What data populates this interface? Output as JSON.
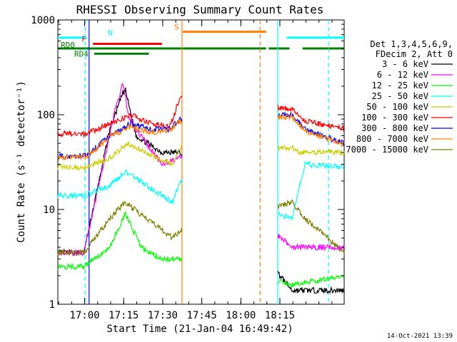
{
  "chart_data": {
    "type": "line",
    "title": "RHESSI Observing Summary Count Rates",
    "xlabel": "Start Time (21-Jan-04 16:49:42)",
    "ylabel": "Count Rate (s⁻¹ detector⁻¹)",
    "yscale": "log",
    "ylim": [
      1,
      1000
    ],
    "xlim_min": [
      0,
      110
    ],
    "x_ticks": [
      {
        "t": 10.3,
        "label": "17:00"
      },
      {
        "t": 25.3,
        "label": "17:15"
      },
      {
        "t": 40.3,
        "label": "17:30"
      },
      {
        "t": 55.3,
        "label": "17:45"
      },
      {
        "t": 70.3,
        "label": "18:00"
      },
      {
        "t": 85.3,
        "label": "18:15"
      }
    ],
    "y_ticks": [
      {
        "v": 1,
        "label": "1"
      },
      {
        "v": 10,
        "label": "10"
      },
      {
        "v": 100,
        "label": "100"
      },
      {
        "v": 1000,
        "label": "1000"
      }
    ],
    "legend_header": [
      "Det 1,3,4,5,6,9,",
      "FDecim 2, Att 0"
    ],
    "legend_position": "right",
    "series": [
      {
        "name": "3 - 6 keV",
        "color": "#000000",
        "values": [
          [
            0,
            3.5
          ],
          [
            10,
            3.5
          ],
          [
            20,
            70
          ],
          [
            25,
            170
          ],
          [
            26,
            180
          ],
          [
            30,
            60
          ],
          [
            40,
            40
          ],
          [
            47,
            40
          ],
          [
            90,
            1.4
          ],
          [
            110,
            1.4
          ]
        ]
      },
      {
        "name": "6 - 12 keV",
        "color": "#ff00ff",
        "values": [
          [
            0,
            3.5
          ],
          [
            10,
            3.5
          ],
          [
            22,
            110
          ],
          [
            25,
            220
          ],
          [
            27,
            100
          ],
          [
            30,
            70
          ],
          [
            40,
            30
          ],
          [
            47,
            35
          ],
          [
            90,
            4
          ],
          [
            95,
            4
          ],
          [
            110,
            4
          ]
        ]
      },
      {
        "name": "12 - 25 keV",
        "color": "#00ff00",
        "values": [
          [
            0,
            2.5
          ],
          [
            10,
            2.5
          ],
          [
            20,
            4
          ],
          [
            26,
            9
          ],
          [
            32,
            4
          ],
          [
            40,
            3
          ],
          [
            47,
            3
          ],
          [
            90,
            1.6
          ],
          [
            110,
            2
          ]
        ]
      },
      {
        "name": "25 - 50 keV",
        "color": "#00ffff",
        "values": [
          [
            0,
            14
          ],
          [
            10,
            14
          ],
          [
            20,
            18
          ],
          [
            26,
            25
          ],
          [
            34,
            18
          ],
          [
            44,
            12
          ],
          [
            47,
            20
          ],
          [
            90,
            8
          ],
          [
            95,
            30
          ],
          [
            110,
            28
          ]
        ]
      },
      {
        "name": "50 - 100 keV",
        "color": "#cccc00",
        "values": [
          [
            0,
            28
          ],
          [
            10,
            28
          ],
          [
            20,
            35
          ],
          [
            27,
            50
          ],
          [
            34,
            40
          ],
          [
            44,
            30
          ],
          [
            47,
            45
          ],
          [
            90,
            45
          ],
          [
            93,
            40
          ],
          [
            110,
            40
          ]
        ]
      },
      {
        "name": "100 - 300 keV",
        "color": "#ff0000",
        "values": [
          [
            0,
            63
          ],
          [
            11,
            63
          ],
          [
            20,
            80
          ],
          [
            28,
            100
          ],
          [
            36,
            80
          ],
          [
            43,
            75
          ],
          [
            47,
            150
          ],
          [
            90,
            115
          ],
          [
            95,
            85
          ],
          [
            110,
            72
          ]
        ]
      },
      {
        "name": "300 - 800 keV",
        "color": "#0000ff",
        "values": [
          [
            0,
            36
          ],
          [
            11,
            37
          ],
          [
            20,
            60
          ],
          [
            28,
            80
          ],
          [
            36,
            70
          ],
          [
            43,
            70
          ],
          [
            47,
            90
          ],
          [
            90,
            100
          ],
          [
            95,
            70
          ],
          [
            110,
            50
          ]
        ]
      },
      {
        "name": "800 - 7000 keV",
        "color": "#ff8000",
        "values": [
          [
            0,
            35
          ],
          [
            11,
            36
          ],
          [
            20,
            58
          ],
          [
            28,
            75
          ],
          [
            36,
            65
          ],
          [
            43,
            68
          ],
          [
            47,
            85
          ],
          [
            90,
            95
          ],
          [
            95,
            68
          ],
          [
            110,
            48
          ]
        ]
      },
      {
        "name": "7000 - 15000 keV",
        "color": "#808000",
        "values": [
          [
            0,
            3.5
          ],
          [
            10,
            3.5
          ],
          [
            20,
            8
          ],
          [
            26,
            12
          ],
          [
            34,
            8
          ],
          [
            44,
            5
          ],
          [
            47,
            6
          ],
          [
            90,
            12
          ],
          [
            95,
            8
          ],
          [
            110,
            3.5
          ]
        ]
      }
    ],
    "state_bars": [
      {
        "label": "N",
        "color": "#00ffff",
        "segments": [
          [
            0,
            11
          ],
          [
            88,
            110
          ]
        ],
        "level": 650
      },
      {
        "label": "F",
        "color": "#ff0000",
        "segments": [
          [
            13.5,
            40
          ]
        ],
        "level": 560
      },
      {
        "label": "S",
        "color": "#ff8000",
        "segments": [
          [
            48,
            80
          ]
        ],
        "level": 750
      },
      {
        "label": "RD0",
        "color": "#008000",
        "segments": [
          [
            0,
            80
          ],
          [
            81,
            89
          ],
          [
            94,
            110
          ]
        ],
        "level": 500
      },
      {
        "label": "RD4",
        "color": "#008000",
        "segments": [
          [
            14,
            35
          ]
        ],
        "level": 440
      }
    ],
    "vertical_markers": [
      {
        "t": 10.5,
        "color": "#00ffff",
        "style": "dashed"
      },
      {
        "t": 12,
        "color": "#0000ff",
        "style": "solid"
      },
      {
        "t": 47.7,
        "color": "#ff8000",
        "style": "solid"
      },
      {
        "t": 77.7,
        "color": "#ff8000",
        "style": "dashed"
      },
      {
        "t": 84.5,
        "color": "#00ffff",
        "style": "solid"
      },
      {
        "t": 104,
        "color": "#00ffff",
        "style": "dashed"
      }
    ]
  },
  "footer": {
    "timestamp": "14-Oct-2021 13:39"
  }
}
